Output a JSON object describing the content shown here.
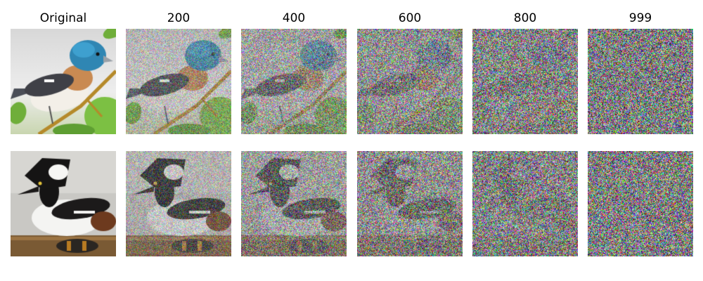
{
  "figure": {
    "columns": [
      {
        "label": "Original",
        "noise_step": 0
      },
      {
        "label": "200",
        "noise_step": 200
      },
      {
        "label": "400",
        "noise_step": 400
      },
      {
        "label": "600",
        "noise_step": 600
      },
      {
        "label": "800",
        "noise_step": 800
      },
      {
        "label": "999",
        "noise_step": 999
      }
    ],
    "rows": [
      {
        "subject": "bird-with-blue-head"
      },
      {
        "subject": "hooded-merganser-duck"
      }
    ],
    "noise_blend": [
      0.0,
      0.42,
      0.66,
      0.82,
      0.93,
      1.0
    ]
  }
}
